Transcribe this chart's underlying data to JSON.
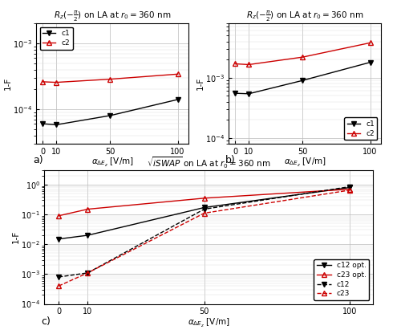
{
  "x": [
    0,
    10,
    50,
    100
  ],
  "panel_a": {
    "title": "$R_z(-\\frac{\\pi}{2})$ on LA at $r_0 = 360$ nm",
    "c1": [
      6e-05,
      5.8e-05,
      8e-05,
      0.00014
    ],
    "c2": [
      0.00026,
      0.000255,
      0.000285,
      0.00034
    ],
    "ylim": [
      3e-05,
      0.002
    ]
  },
  "panel_b": {
    "title": "$R_z(-\\frac{\\pi}{2})$ on LA at $r_0 = 360$ nm",
    "c1": [
      0.00055,
      0.00054,
      0.0009,
      0.0018
    ],
    "c2": [
      0.0017,
      0.00165,
      0.0022,
      0.0038
    ],
    "ylim": [
      8e-05,
      0.008
    ]
  },
  "panel_c": {
    "title": "$\\sqrt{iSWAP}$ on LA at $r_0 = 360$ nm",
    "c12_opt": [
      0.015,
      0.02,
      0.17,
      0.8
    ],
    "c23_opt": [
      0.09,
      0.15,
      0.35,
      0.7
    ],
    "c12": [
      0.0008,
      0.0011,
      0.15,
      0.85
    ],
    "c23": [
      0.0004,
      0.0011,
      0.11,
      0.65
    ],
    "ylim": [
      0.0001,
      3
    ]
  },
  "xlabel": "$\\alpha_{\\Delta E_z}$ [V/m]",
  "ylabel": "1-F",
  "black": "#000000",
  "red": "#cc0000",
  "label_fontsize": 7.5,
  "title_fontsize": 7.5,
  "tick_fontsize": 7,
  "legend_fontsize": 6.5
}
